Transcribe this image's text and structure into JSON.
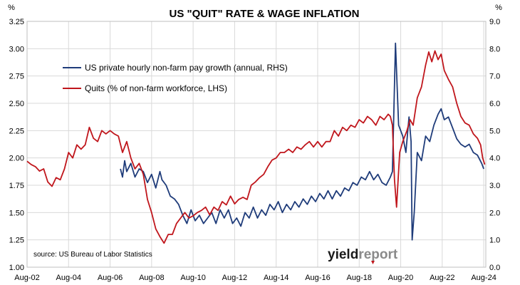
{
  "chart_data": {
    "type": "line",
    "title": "US \"QUIT\" RATE & WAGE INFLATION",
    "left_axis": {
      "unit": "%",
      "ylim": [
        1.0,
        3.25
      ],
      "ticks": [
        "1.00",
        "1.25",
        "1.50",
        "1.75",
        "2.00",
        "2.25",
        "2.50",
        "2.75",
        "3.00",
        "3.25"
      ]
    },
    "right_axis": {
      "unit": "%",
      "ylim": [
        0.0,
        9.0
      ],
      "ticks": [
        "0.0",
        "1.0",
        "2.0",
        "3.0",
        "4.0",
        "5.0",
        "6.0",
        "7.0",
        "8.0",
        "9.0"
      ]
    },
    "x_axis": {
      "ticks": [
        "Aug-02",
        "Aug-04",
        "Aug-06",
        "Aug-08",
        "Aug-10",
        "Aug-12",
        "Aug-14",
        "Aug-16",
        "Aug-18",
        "Aug-20",
        "Aug-22",
        "Aug-24"
      ],
      "range": [
        2002.5,
        2024.6
      ]
    },
    "gridlines": true,
    "legend_position": "top-left",
    "series": [
      {
        "name": "US private hourly non-farm pay growth (annual, RHS)",
        "axis": "right",
        "color": "#1f3c7a",
        "points": [
          [
            2007.0,
            3.6
          ],
          [
            2007.1,
            3.3
          ],
          [
            2007.2,
            3.9
          ],
          [
            2007.3,
            3.5
          ],
          [
            2007.5,
            3.8
          ],
          [
            2007.7,
            3.3
          ],
          [
            2007.9,
            3.6
          ],
          [
            2008.1,
            3.5
          ],
          [
            2008.3,
            3.1
          ],
          [
            2008.5,
            3.4
          ],
          [
            2008.7,
            2.9
          ],
          [
            2008.9,
            3.5
          ],
          [
            2009.0,
            3.2
          ],
          [
            2009.2,
            3.0
          ],
          [
            2009.4,
            2.6
          ],
          [
            2009.6,
            2.5
          ],
          [
            2009.8,
            2.3
          ],
          [
            2010.0,
            1.9
          ],
          [
            2010.2,
            1.6
          ],
          [
            2010.4,
            2.1
          ],
          [
            2010.6,
            1.7
          ],
          [
            2010.8,
            1.9
          ],
          [
            2011.0,
            1.6
          ],
          [
            2011.2,
            1.8
          ],
          [
            2011.4,
            2.0
          ],
          [
            2011.6,
            1.6
          ],
          [
            2011.8,
            2.1
          ],
          [
            2012.0,
            1.8
          ],
          [
            2012.2,
            2.1
          ],
          [
            2012.4,
            1.6
          ],
          [
            2012.6,
            1.8
          ],
          [
            2012.8,
            1.5
          ],
          [
            2013.0,
            2.0
          ],
          [
            2013.2,
            1.8
          ],
          [
            2013.4,
            2.2
          ],
          [
            2013.6,
            1.8
          ],
          [
            2013.8,
            2.1
          ],
          [
            2014.0,
            1.9
          ],
          [
            2014.2,
            2.3
          ],
          [
            2014.4,
            2.1
          ],
          [
            2014.6,
            2.4
          ],
          [
            2014.8,
            2.0
          ],
          [
            2015.0,
            2.3
          ],
          [
            2015.2,
            2.1
          ],
          [
            2015.4,
            2.4
          ],
          [
            2015.6,
            2.2
          ],
          [
            2015.8,
            2.5
          ],
          [
            2016.0,
            2.3
          ],
          [
            2016.2,
            2.6
          ],
          [
            2016.4,
            2.4
          ],
          [
            2016.6,
            2.7
          ],
          [
            2016.8,
            2.5
          ],
          [
            2017.0,
            2.8
          ],
          [
            2017.2,
            2.5
          ],
          [
            2017.4,
            2.8
          ],
          [
            2017.6,
            2.6
          ],
          [
            2017.8,
            2.9
          ],
          [
            2018.0,
            2.8
          ],
          [
            2018.2,
            3.1
          ],
          [
            2018.4,
            3.0
          ],
          [
            2018.6,
            3.3
          ],
          [
            2018.8,
            3.2
          ],
          [
            2019.0,
            3.5
          ],
          [
            2019.2,
            3.2
          ],
          [
            2019.4,
            3.4
          ],
          [
            2019.6,
            3.1
          ],
          [
            2019.8,
            3.0
          ],
          [
            2020.0,
            3.3
          ],
          [
            2020.1,
            3.5
          ],
          [
            2020.25,
            8.2
          ],
          [
            2020.4,
            5.2
          ],
          [
            2020.6,
            4.8
          ],
          [
            2020.75,
            4.2
          ],
          [
            2020.9,
            5.5
          ],
          [
            2021.0,
            4.6
          ],
          [
            2021.05,
            1.0
          ],
          [
            2021.15,
            2.0
          ],
          [
            2021.3,
            4.2
          ],
          [
            2021.5,
            3.9
          ],
          [
            2021.7,
            4.8
          ],
          [
            2021.9,
            4.6
          ],
          [
            2022.1,
            5.2
          ],
          [
            2022.3,
            5.6
          ],
          [
            2022.45,
            5.8
          ],
          [
            2022.6,
            5.4
          ],
          [
            2022.8,
            5.5
          ],
          [
            2023.0,
            5.1
          ],
          [
            2023.2,
            4.7
          ],
          [
            2023.4,
            4.5
          ],
          [
            2023.6,
            4.4
          ],
          [
            2023.8,
            4.5
          ],
          [
            2024.0,
            4.2
          ],
          [
            2024.2,
            4.1
          ],
          [
            2024.4,
            3.8
          ],
          [
            2024.5,
            3.6
          ]
        ]
      },
      {
        "name": "Quits (% of non-farm workforce, LHS)",
        "axis": "left",
        "color": "#c0161c",
        "points": [
          [
            2002.5,
            1.97
          ],
          [
            2002.7,
            1.94
          ],
          [
            2002.9,
            1.92
          ],
          [
            2003.1,
            1.88
          ],
          [
            2003.3,
            1.9
          ],
          [
            2003.5,
            1.78
          ],
          [
            2003.7,
            1.74
          ],
          [
            2003.9,
            1.82
          ],
          [
            2004.1,
            1.8
          ],
          [
            2004.3,
            1.9
          ],
          [
            2004.5,
            2.05
          ],
          [
            2004.7,
            2.0
          ],
          [
            2004.9,
            2.12
          ],
          [
            2005.1,
            2.08
          ],
          [
            2005.3,
            2.12
          ],
          [
            2005.5,
            2.28
          ],
          [
            2005.7,
            2.18
          ],
          [
            2005.9,
            2.15
          ],
          [
            2006.1,
            2.25
          ],
          [
            2006.3,
            2.22
          ],
          [
            2006.5,
            2.25
          ],
          [
            2006.7,
            2.22
          ],
          [
            2006.9,
            2.2
          ],
          [
            2007.1,
            2.05
          ],
          [
            2007.3,
            2.15
          ],
          [
            2007.5,
            2.0
          ],
          [
            2007.7,
            1.9
          ],
          [
            2007.9,
            1.95
          ],
          [
            2008.1,
            1.85
          ],
          [
            2008.3,
            1.62
          ],
          [
            2008.5,
            1.5
          ],
          [
            2008.7,
            1.35
          ],
          [
            2008.9,
            1.28
          ],
          [
            2009.1,
            1.22
          ],
          [
            2009.3,
            1.3
          ],
          [
            2009.5,
            1.3
          ],
          [
            2009.7,
            1.4
          ],
          [
            2009.9,
            1.45
          ],
          [
            2010.1,
            1.5
          ],
          [
            2010.3,
            1.45
          ],
          [
            2010.5,
            1.47
          ],
          [
            2010.7,
            1.5
          ],
          [
            2010.9,
            1.52
          ],
          [
            2011.1,
            1.55
          ],
          [
            2011.3,
            1.48
          ],
          [
            2011.5,
            1.55
          ],
          [
            2011.7,
            1.52
          ],
          [
            2011.9,
            1.6
          ],
          [
            2012.1,
            1.57
          ],
          [
            2012.3,
            1.65
          ],
          [
            2012.5,
            1.58
          ],
          [
            2012.7,
            1.62
          ],
          [
            2012.9,
            1.64
          ],
          [
            2013.1,
            1.62
          ],
          [
            2013.3,
            1.75
          ],
          [
            2013.5,
            1.78
          ],
          [
            2013.7,
            1.82
          ],
          [
            2013.9,
            1.85
          ],
          [
            2014.1,
            1.92
          ],
          [
            2014.3,
            1.98
          ],
          [
            2014.5,
            2.0
          ],
          [
            2014.7,
            2.05
          ],
          [
            2014.9,
            2.05
          ],
          [
            2015.1,
            2.08
          ],
          [
            2015.3,
            2.05
          ],
          [
            2015.5,
            2.1
          ],
          [
            2015.7,
            2.08
          ],
          [
            2015.9,
            2.12
          ],
          [
            2016.1,
            2.15
          ],
          [
            2016.3,
            2.1
          ],
          [
            2016.5,
            2.15
          ],
          [
            2016.7,
            2.1
          ],
          [
            2016.9,
            2.15
          ],
          [
            2017.1,
            2.15
          ],
          [
            2017.3,
            2.25
          ],
          [
            2017.5,
            2.2
          ],
          [
            2017.7,
            2.28
          ],
          [
            2017.9,
            2.25
          ],
          [
            2018.1,
            2.3
          ],
          [
            2018.3,
            2.28
          ],
          [
            2018.5,
            2.35
          ],
          [
            2018.7,
            2.32
          ],
          [
            2018.9,
            2.38
          ],
          [
            2019.1,
            2.35
          ],
          [
            2019.3,
            2.3
          ],
          [
            2019.5,
            2.38
          ],
          [
            2019.7,
            2.35
          ],
          [
            2019.9,
            2.4
          ],
          [
            2020.0,
            2.38
          ],
          [
            2020.1,
            2.3
          ],
          [
            2020.2,
            1.8
          ],
          [
            2020.3,
            1.55
          ],
          [
            2020.45,
            2.05
          ],
          [
            2020.6,
            2.15
          ],
          [
            2020.8,
            2.25
          ],
          [
            2020.95,
            2.35
          ],
          [
            2021.1,
            2.3
          ],
          [
            2021.3,
            2.55
          ],
          [
            2021.5,
            2.65
          ],
          [
            2021.7,
            2.85
          ],
          [
            2021.85,
            2.97
          ],
          [
            2022.0,
            2.88
          ],
          [
            2022.15,
            2.98
          ],
          [
            2022.3,
            2.9
          ],
          [
            2022.45,
            2.95
          ],
          [
            2022.6,
            2.8
          ],
          [
            2022.8,
            2.72
          ],
          [
            2023.0,
            2.65
          ],
          [
            2023.2,
            2.5
          ],
          [
            2023.4,
            2.38
          ],
          [
            2023.6,
            2.32
          ],
          [
            2023.8,
            2.3
          ],
          [
            2024.0,
            2.22
          ],
          [
            2024.2,
            2.18
          ],
          [
            2024.35,
            2.12
          ],
          [
            2024.45,
            2.0
          ],
          [
            2024.55,
            1.94
          ]
        ]
      }
    ],
    "source": "source: US Bureau of Labor Statistics",
    "logo": "yieldreport"
  }
}
